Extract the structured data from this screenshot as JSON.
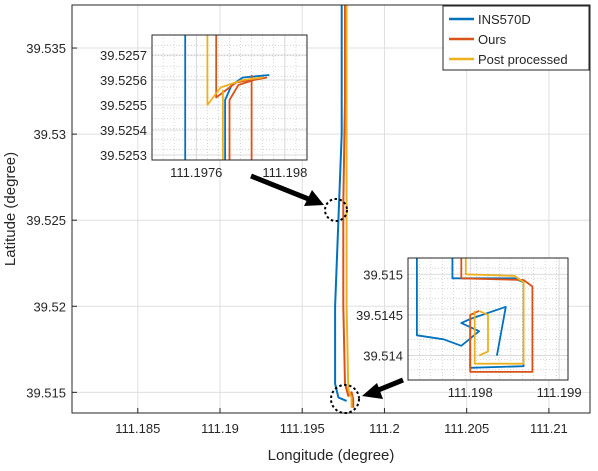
{
  "chart_data": {
    "type": "line",
    "xlabel": "Longitude (degree)",
    "ylabel": "Latitude (degree)",
    "xlim": [
      111.181,
      111.2125
    ],
    "ylim": [
      39.5138,
      39.5375
    ],
    "xticks": [
      111.185,
      111.19,
      111.195,
      111.2,
      111.205,
      111.21
    ],
    "xtick_labels": [
      "111.185",
      "111.19",
      "111.195",
      "111.2",
      "111.205",
      "111.21"
    ],
    "yticks": [
      39.515,
      39.52,
      39.525,
      39.53,
      39.535
    ],
    "ytick_labels": [
      "39.515",
      "39.52",
      "39.525",
      "39.53",
      "39.535"
    ],
    "grid": true,
    "legend_position": "top-right",
    "series": [
      {
        "name": "INS570D",
        "color": "#0072BD",
        "x": [
          111.1974,
          111.1974,
          111.1972,
          111.197,
          111.197,
          111.1972,
          111.1977
        ],
        "y": [
          39.5375,
          39.53,
          39.525,
          39.52,
          39.5155,
          39.5147,
          39.5145
        ]
      },
      {
        "name": "Ours",
        "color": "#D95319",
        "x": [
          111.1976,
          111.1976,
          111.1975,
          111.1975,
          111.1976,
          111.1978,
          111.198,
          111.1981,
          111.1981
        ],
        "y": [
          39.5375,
          39.532,
          39.526,
          39.52,
          39.5155,
          39.5148,
          39.515,
          39.5146,
          39.5141
        ]
      },
      {
        "name": "Post processed",
        "color": "#EDB120",
        "x": [
          111.1977,
          111.1977,
          111.1977,
          111.1977,
          111.1978,
          111.1979,
          111.198,
          111.198
        ],
        "y": [
          39.5375,
          39.532,
          39.525,
          39.52,
          39.5152,
          39.5149,
          39.5147,
          39.5141
        ]
      }
    ],
    "insets": [
      {
        "position": "top-left",
        "xlim": [
          111.1974,
          111.1981
        ],
        "ylim": [
          39.52528,
          39.52578
        ],
        "xticks": [
          111.1976,
          111.198
        ],
        "xtick_labels": [
          "111.1976",
          "111.198"
        ],
        "yticks": [
          39.5253,
          39.5254,
          39.5255,
          39.5256,
          39.5257
        ],
        "ytick_labels": [
          "39.5253",
          "39.5254",
          "39.5255",
          "39.5256",
          "39.5257"
        ],
        "series": [
          {
            "name": "INS570D",
            "x": [
              111.19755,
              111.19755
            ],
            "y": [
              39.52578,
              39.52528
            ]
          },
          {
            "name": "INS570D",
            "x": [
              111.19773,
              111.19773,
              111.19776,
              111.19781,
              111.19793
            ],
            "y": [
              39.52528,
              39.52552,
              39.52558,
              39.52561,
              39.52562
            ]
          },
          {
            "name": "Ours",
            "x": [
              111.19775,
              111.19775,
              111.19779,
              111.19786,
              111.19792
            ],
            "y": [
              39.52528,
              39.52552,
              39.52558,
              39.5256,
              39.52561
            ]
          },
          {
            "name": "Ours",
            "x": [
              111.19769,
              111.19769,
              111.19778,
              111.1979
            ],
            "y": [
              39.52578,
              39.52553,
              39.52559,
              39.52561
            ]
          },
          {
            "name": "Ours",
            "x": [
              111.19785,
              111.19785
            ],
            "y": [
              39.52528,
              39.52562
            ]
          },
          {
            "name": "Post processed",
            "x": [
              111.19765,
              111.19765,
              111.19771,
              111.19781,
              111.1979
            ],
            "y": [
              39.52578,
              39.5255,
              39.52557,
              39.5256,
              39.52561
            ]
          },
          {
            "name": "Post processed",
            "x": [
              111.19772,
              111.19772
            ],
            "y": [
              39.52528,
              39.52556
            ]
          }
        ]
      },
      {
        "position": "bottom-right",
        "xlim": [
          111.1973,
          111.1991
        ],
        "ylim": [
          39.5137,
          39.5152
        ],
        "xticks": [
          111.198,
          111.199
        ],
        "xtick_labels": [
          "111.198",
          "111.199"
        ],
        "yticks": [
          39.514,
          39.5145,
          39.515
        ],
        "ytick_labels": [
          "39.514",
          "39.5145",
          "39.515"
        ],
        "series": [
          {
            "name": "INS570D",
            "x": [
              111.1974,
              111.1974,
              111.1977,
              111.1979,
              111.1981,
              111.1979,
              111.198,
              111.1984,
              111.1983
            ],
            "y": [
              39.5152,
              39.51425,
              39.5142,
              39.51412,
              39.5143,
              39.5144,
              39.51445,
              39.5146,
              39.514
            ]
          },
          {
            "name": "INS570D",
            "x": [
              111.1978,
              111.1978,
              111.1985,
              111.1986,
              111.1986,
              111.198,
              111.198
            ],
            "y": [
              39.5152,
              39.51495,
              39.51495,
              39.5149,
              39.51387,
              39.51385,
              39.5139
            ]
          },
          {
            "name": "Ours",
            "x": [
              111.1979,
              111.1979,
              111.1986,
              111.1987,
              111.1987,
              111.198,
              111.198
            ],
            "y": [
              39.5152,
              39.51495,
              39.51493,
              39.51485,
              39.5138,
              39.5138,
              39.51445
            ]
          },
          {
            "name": "Ours",
            "x": [
              111.198,
              111.198,
              111.1981
            ],
            "y": [
              39.51385,
              39.5145,
              39.51455
            ]
          },
          {
            "name": "Post processed",
            "x": [
              111.19795,
              111.19795,
              111.1985,
              111.1986,
              111.1986,
              111.19805,
              111.19805
            ],
            "y": [
              39.5152,
              39.515,
              39.51498,
              39.5149,
              39.5139,
              39.5139,
              39.51455
            ]
          },
          {
            "name": "Post processed",
            "x": [
              111.1981,
              111.1982,
              111.1982,
              111.1981
            ],
            "y": [
              39.51455,
              39.5145,
              39.51405,
              39.514
            ]
          }
        ]
      }
    ]
  }
}
